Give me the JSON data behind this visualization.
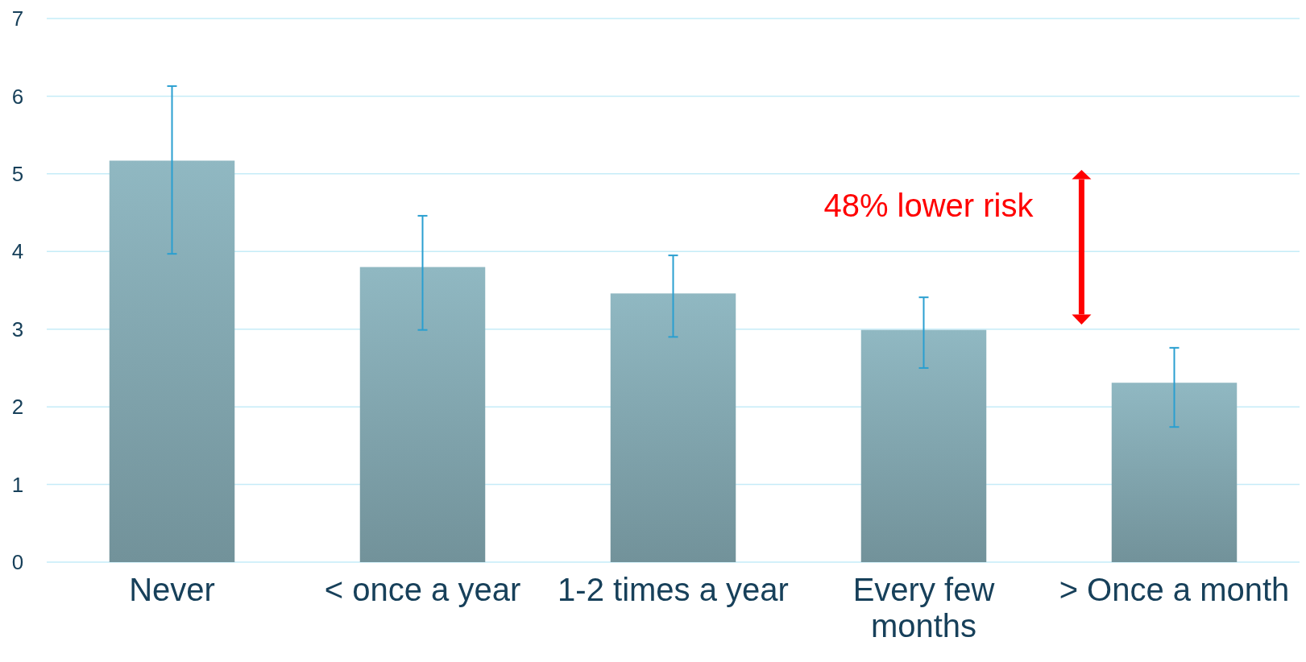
{
  "chart_data": {
    "type": "bar",
    "categories": [
      "Never",
      "< once a year",
      "1-2 times a year",
      "Every few months",
      "> Once a month"
    ],
    "values": [
      5.17,
      3.8,
      3.46,
      2.99,
      2.31
    ],
    "errors": [
      [
        3.97,
        6.13
      ],
      [
        2.99,
        4.46
      ],
      [
        2.9,
        3.95
      ],
      [
        2.5,
        3.41
      ],
      [
        1.74,
        2.76
      ]
    ],
    "color": "#7fa2ab",
    "ylim": [
      0,
      7
    ],
    "yticks": [
      0,
      1,
      2,
      3,
      4,
      5,
      6,
      7
    ],
    "grid": "y",
    "annotations": [
      "48% lower risk"
    ]
  }
}
